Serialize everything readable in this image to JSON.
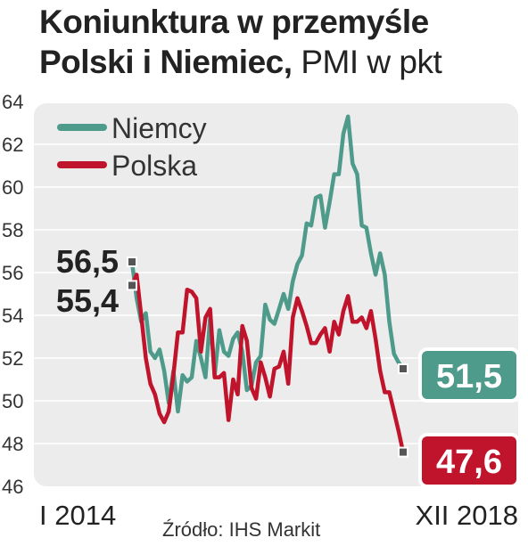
{
  "title": {
    "bold": "Koniunktura w przemyśle",
    "bold2": "Polski i Niemiec,",
    "unit": "PMI w pkt"
  },
  "source": "Źródło: IHS Markit",
  "colors": {
    "niemcy": "#4e9b8b",
    "polska": "#c0142c",
    "panel": "#ececec",
    "grid": "#ffffff",
    "marker": "#555555"
  },
  "chart_data": {
    "type": "line",
    "title": "Koniunktura w przemyśle Polski i Niemiec, PMI w pkt",
    "ylim": [
      46,
      64
    ],
    "y_ticks": [
      "64",
      "62",
      "60",
      "58",
      "56",
      "54",
      "52",
      "50",
      "48",
      "46"
    ],
    "x_tick_labels": [
      "I 2014",
      "XII 2018"
    ],
    "x_range": [
      "2014-01",
      "2018-12"
    ],
    "legend": {
      "position": "top-left",
      "entries": [
        "Niemcy",
        "Polska"
      ]
    },
    "grid": true,
    "start_labels": {
      "niemcy": "56,5",
      "polska": "55,4"
    },
    "end_labels": {
      "niemcy": "51,5",
      "polska": "47,6"
    },
    "series": [
      {
        "name": "Niemcy",
        "color": "#4e9b8b",
        "values": [
          56.5,
          54.8,
          53.7,
          54.1,
          52.3,
          52.0,
          52.4,
          51.4,
          49.9,
          51.4,
          49.5,
          51.2,
          50.9,
          51.1,
          52.8,
          52.0,
          51.1,
          53.9,
          51.2,
          53.3,
          52.3,
          52.1,
          52.9,
          53.2,
          52.3,
          50.5,
          50.7,
          51.8,
          52.1,
          54.5,
          53.8,
          53.6,
          54.3,
          55.0,
          54.3,
          55.6,
          56.4,
          56.8,
          58.3,
          58.2,
          59.5,
          59.6,
          58.1,
          59.3,
          60.6,
          60.6,
          62.5,
          63.3,
          61.1,
          60.6,
          58.2,
          58.1,
          56.9,
          55.9,
          56.9,
          55.9,
          53.7,
          52.2,
          51.8,
          51.5
        ]
      },
      {
        "name": "Polska",
        "color": "#c0142c",
        "values": [
          55.4,
          55.9,
          54.0,
          52.0,
          50.8,
          50.3,
          49.4,
          49.0,
          49.5,
          51.2,
          53.2,
          53.2,
          55.2,
          55.1,
          54.8,
          52.3,
          53.9,
          54.3,
          51.1,
          51.1,
          51.3,
          49.1,
          51.0,
          50.3,
          53.5,
          52.8,
          50.6,
          50.1,
          51.8,
          51.1,
          50.2,
          51.5,
          51.6,
          52.3,
          50.8,
          53.9,
          54.8,
          54.2,
          53.5,
          52.7,
          52.7,
          53.1,
          53.4,
          52.3,
          53.7,
          53.1,
          54.2,
          54.9,
          53.7,
          53.7,
          53.9,
          53.4,
          54.2,
          52.9,
          51.4,
          50.4,
          50.4,
          49.5,
          48.6,
          47.6
        ]
      }
    ]
  }
}
